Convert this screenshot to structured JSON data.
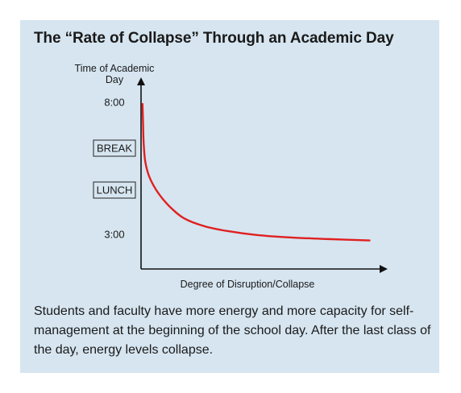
{
  "title": "The “Rate of Collapse” Through an Academic Day",
  "caption": "Students and faculty have more energy and more capacity for self-management at the beginning of the school day. After the last class of the day, energy levels collapse.",
  "chart_data": {
    "type": "line",
    "title": "The “Rate of Collapse” Through an Academic Day",
    "ylabel_lines": [
      "Time of Academic",
      "Day"
    ],
    "xlabel": "Degree of Disruption/Collapse",
    "y_ticks": [
      {
        "label": "8:00",
        "boxed": false
      },
      {
        "label": "BREAK",
        "boxed": true
      },
      {
        "label": "LUNCH",
        "boxed": true
      },
      {
        "label": "3:00",
        "boxed": false
      }
    ],
    "series": [
      {
        "color": "#e02020",
        "points": [
          [
            0.5,
            8.0
          ],
          [
            0.7,
            9.0
          ],
          [
            0.9,
            10.0
          ],
          [
            1.5,
            11.0
          ],
          [
            3.0,
            11.8
          ],
          [
            6.0,
            12.6
          ],
          [
            10.0,
            13.3
          ],
          [
            15.0,
            13.9
          ],
          [
            22.0,
            14.3
          ],
          [
            30.0,
            14.55
          ],
          [
            40.0,
            14.75
          ],
          [
            52.0,
            14.88
          ],
          [
            65.0,
            14.96
          ],
          [
            79.0,
            15.03
          ]
        ]
      }
    ],
    "xlim": [
      0,
      85
    ],
    "ylim": [
      7.0,
      16.5
    ],
    "grid": false,
    "legend": false
  }
}
